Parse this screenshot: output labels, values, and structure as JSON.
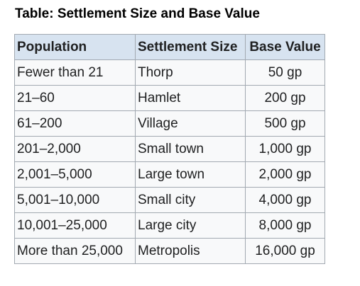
{
  "caption": "Table: Settlement Size and Base Value",
  "table": {
    "headers": [
      "Population",
      "Settlement Size",
      "Base Value"
    ],
    "rows": [
      [
        "Fewer than 21",
        "Thorp",
        "50 gp"
      ],
      [
        "21–60",
        "Hamlet",
        "200 gp"
      ],
      [
        "61–200",
        "Village",
        "500 gp"
      ],
      [
        "201–2,000",
        "Small town",
        "1,000 gp"
      ],
      [
        "2,001–5,000",
        "Large town",
        "2,000 gp"
      ],
      [
        "5,001–10,000",
        "Small city",
        "4,000 gp"
      ],
      [
        "10,001–25,000",
        "Large city",
        "8,000 gp"
      ],
      [
        "More than 25,000",
        "Metropolis",
        "16,000 gp"
      ]
    ]
  },
  "colors": {
    "header_bg": "#d7e3f0",
    "cell_bg": "#f8f9fa",
    "border": "#a2a9b1"
  }
}
